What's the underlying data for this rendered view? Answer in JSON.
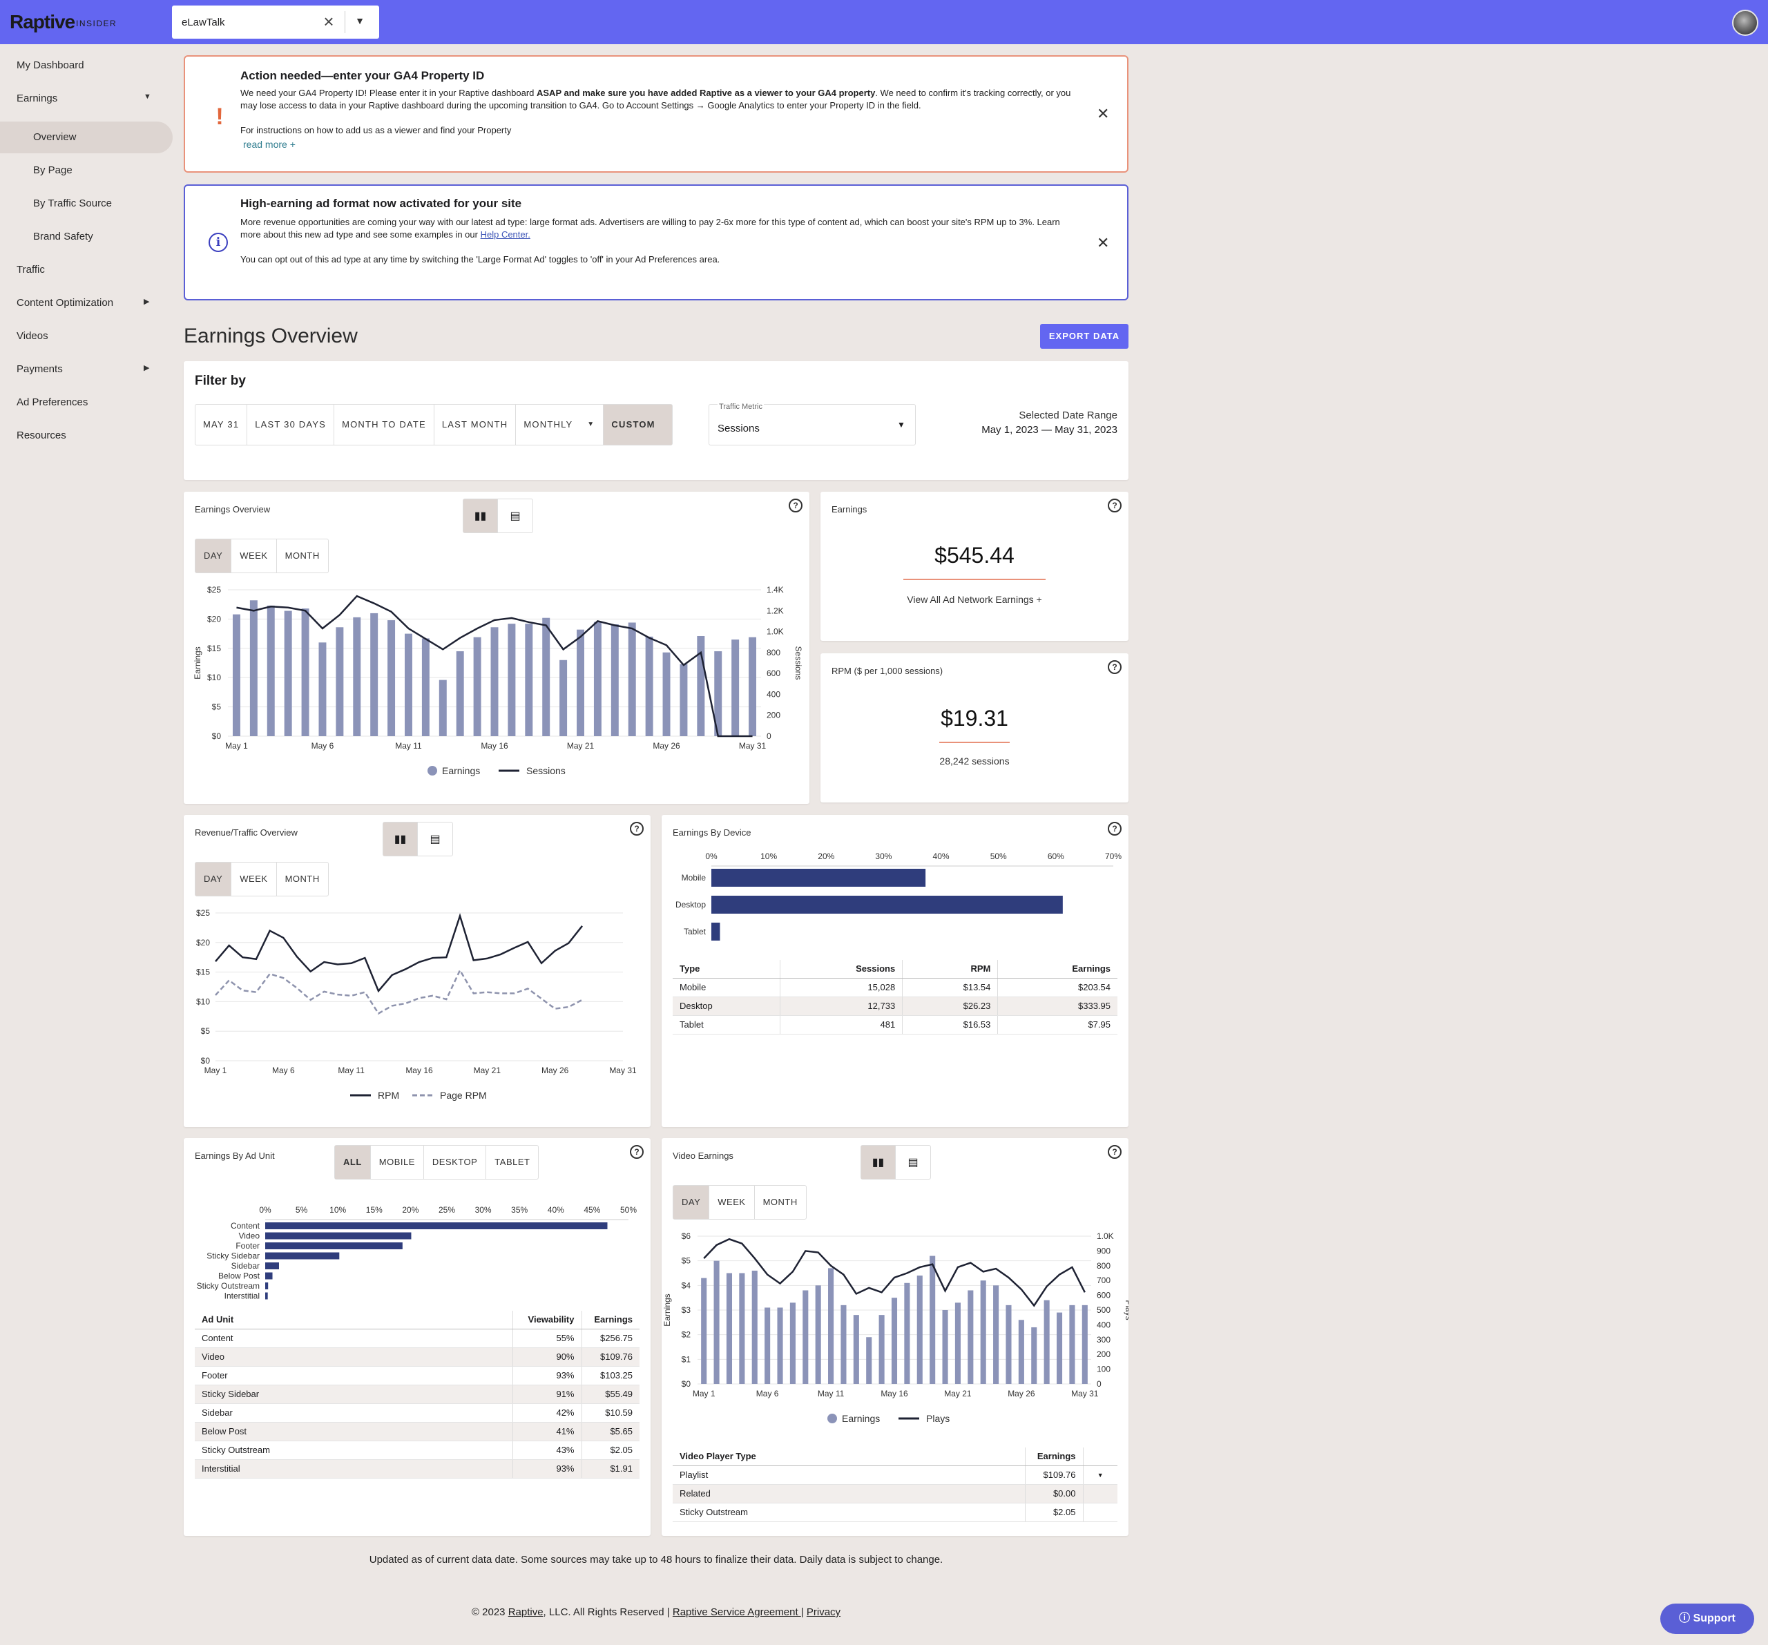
{
  "header": {
    "logo": "Raptive",
    "logo_sub": "INSIDER",
    "site": "eLawTalk"
  },
  "sidebar": {
    "items": [
      {
        "label": "My Dashboard"
      },
      {
        "label": "Earnings"
      },
      {
        "label": "Overview"
      },
      {
        "label": "By Page"
      },
      {
        "label": "By Traffic Source"
      },
      {
        "label": "Brand Safety"
      },
      {
        "label": "Traffic"
      },
      {
        "label": "Content Optimization"
      },
      {
        "label": "Videos"
      },
      {
        "label": "Payments"
      },
      {
        "label": "Ad Preferences"
      },
      {
        "label": "Resources"
      }
    ]
  },
  "alert1": {
    "title": "Action needed—enter your GA4 Property ID",
    "text_pre": "We need your GA4 Property ID! Please enter it in your Raptive dashboard ",
    "text_bold": "ASAP and make sure you have added Raptive as a viewer to your GA4 property",
    "text_post": ". We need to confirm it's tracking correctly, or you may lose access to data in your Raptive dashboard during the upcoming transition to GA4. Go to Account Settings → Google Analytics to enter your Property ID in the field.",
    "text2": "For instructions on how to add us as a viewer and find your Property",
    "read_more": "read more +"
  },
  "alert2": {
    "title": "High-earning ad format now activated for your site",
    "text_pre": "More revenue opportunities are coming your way with our latest ad type: large format ads. Advertisers are willing to pay 2-6x more for this type of content ad, which can boost your site's RPM up to 3%. Learn more about this new ad type and see some examples in our ",
    "link": "Help Center.",
    "text2": "You can opt out of this ad type at any time by switching the 'Large Format Ad' toggles to 'off' in your Ad Preferences area."
  },
  "page": {
    "title": "Earnings Overview",
    "export": "EXPORT DATA"
  },
  "filter": {
    "title": "Filter by",
    "buttons": [
      "MAY 31",
      "LAST 30 DAYS",
      "MONTH TO DATE",
      "LAST MONTH",
      "MONTHLY",
      "CUSTOM"
    ],
    "metric_label": "Traffic Metric",
    "metric_value": "Sessions",
    "range_label": "Selected Date Range",
    "range_value": "May 1, 2023 — May 31, 2023"
  },
  "segments": {
    "day": "DAY",
    "week": "WEEK",
    "month": "MONTH"
  },
  "earnings_chart": {
    "title": "Earnings Overview",
    "legend1": "Earnings",
    "legend2": "Sessions",
    "ylabel": "Earnings",
    "y2label": "Sessions"
  },
  "stat_earnings": {
    "title": "Earnings",
    "value": "$545.44",
    "link": "View All Ad Network Earnings +"
  },
  "stat_rpm": {
    "title": "RPM ($ per 1,000 sessions)",
    "value": "$19.31",
    "sub": "28,242 sessions"
  },
  "rev_chart": {
    "title": "Revenue/Traffic Overview",
    "legend1": "RPM",
    "legend2": "Page RPM"
  },
  "device": {
    "title": "Earnings By Device",
    "headers": [
      "Type",
      "Sessions",
      "RPM",
      "Earnings"
    ],
    "rows": [
      [
        "Mobile",
        "15,028",
        "$13.54",
        "$203.54"
      ],
      [
        "Desktop",
        "12,733",
        "$26.23",
        "$333.95"
      ],
      [
        "Tablet",
        "481",
        "$16.53",
        "$7.95"
      ]
    ]
  },
  "adunit": {
    "title": "Earnings By Ad Unit",
    "tabs": [
      "ALL",
      "MOBILE",
      "DESKTOP",
      "TABLET"
    ],
    "headers": [
      "Ad Unit",
      "Viewability",
      "Earnings"
    ],
    "rows": [
      [
        "Content",
        "55%",
        "$256.75"
      ],
      [
        "Video",
        "90%",
        "$109.76"
      ],
      [
        "Footer",
        "93%",
        "$103.25"
      ],
      [
        "Sticky Sidebar",
        "91%",
        "$55.49"
      ],
      [
        "Sidebar",
        "42%",
        "$10.59"
      ],
      [
        "Below Post",
        "41%",
        "$5.65"
      ],
      [
        "Sticky Outstream",
        "43%",
        "$2.05"
      ],
      [
        "Interstitial",
        "93%",
        "$1.91"
      ]
    ]
  },
  "video": {
    "title": "Video Earnings",
    "legend1": "Earnings",
    "legend2": "Plays",
    "ylabel": "Earnings",
    "y2label": "Plays",
    "headers": [
      "Video Player Type",
      "Earnings"
    ],
    "rows": [
      [
        "Playlist",
        "$109.76"
      ],
      [
        "Related",
        "$0.00"
      ],
      [
        "Sticky Outstream",
        "$2.05"
      ]
    ]
  },
  "footer": {
    "note": "Updated as of current data date. Some sources may take up to 48 hours to finalize their data. Daily data is subject to change.",
    "copy_pre": "© 2023 ",
    "raptive": "Raptive",
    "copy_mid": ", LLC. All Rights Reserved | ",
    "agreement": "Raptive Service Agreement ",
    "sep": "| ",
    "privacy": "Privacy",
    "support": "Support"
  },
  "colors": {
    "accent": "#6366f1",
    "bar": "#8b93b8",
    "line": "#1e2233",
    "device_bar": "#2f3d7c"
  },
  "chart_data": [
    {
      "type": "bar",
      "x": [
        "May 1",
        "May 2",
        "May 3",
        "May 4",
        "May 5",
        "May 6",
        "May 7",
        "May 8",
        "May 9",
        "May 10",
        "May 11",
        "May 12",
        "May 13",
        "May 14",
        "May 15",
        "May 16",
        "May 17",
        "May 18",
        "May 19",
        "May 20",
        "May 21",
        "May 22",
        "May 23",
        "May 24",
        "May 25",
        "May 26",
        "May 27",
        "May 28",
        "May 29",
        "May 30",
        "May 31"
      ],
      "xticks": [
        "May 1",
        "May 6",
        "May 11",
        "May 16",
        "May 21",
        "May 26",
        "May 31"
      ],
      "series": [
        {
          "name": "Earnings",
          "axis": "left",
          "type": "bar",
          "values": [
            20.8,
            23.2,
            22.3,
            21.4,
            21.8,
            16.0,
            18.6,
            20.3,
            21.0,
            19.8,
            17.5,
            16.7,
            9.6,
            14.5,
            16.9,
            18.6,
            19.2,
            19.2,
            20.2,
            13.0,
            18.2,
            19.5,
            19.1,
            19.4,
            17.0,
            14.3,
            12.3,
            17.1,
            14.5,
            16.5,
            16.9
          ]
        },
        {
          "name": "Sessions",
          "axis": "right",
          "type": "line",
          "values": [
            1230,
            1200,
            1240,
            1230,
            1200,
            1030,
            1160,
            1340,
            1270,
            1190,
            1030,
            930,
            830,
            940,
            1030,
            1110,
            1130,
            1090,
            1060,
            830,
            950,
            1100,
            1060,
            1030,
            940,
            870,
            680,
            800,
            0,
            0,
            0
          ]
        }
      ],
      "ylabel": "Earnings",
      "y2label": "Sessions",
      "ylim": [
        0,
        25
      ],
      "y2lim": [
        0,
        1400
      ],
      "yticks": [
        "$0",
        "$5",
        "$10",
        "$15",
        "$20",
        "$25"
      ],
      "y2ticks": [
        "0",
        "200",
        "400",
        "600",
        "800",
        "1.0K",
        "1.2K",
        "1.4K"
      ]
    },
    {
      "type": "line",
      "x": [
        "May 1",
        "May 2",
        "May 3",
        "May 4",
        "May 5",
        "May 6",
        "May 7",
        "May 8",
        "May 9",
        "May 10",
        "May 11",
        "May 12",
        "May 13",
        "May 14",
        "May 15",
        "May 16",
        "May 17",
        "May 18",
        "May 19",
        "May 20",
        "May 21",
        "May 22",
        "May 23",
        "May 24",
        "May 25",
        "May 26",
        "May 27",
        "May 28"
      ],
      "xticks": [
        "May 1",
        "May 6",
        "May 11",
        "May 16",
        "May 21",
        "May 26",
        "May 31"
      ],
      "series": [
        {
          "name": "RPM",
          "values": [
            16.8,
            19.5,
            17.5,
            17.2,
            22.0,
            20.8,
            17.6,
            15.1,
            16.7,
            16.3,
            16.5,
            17.4,
            11.8,
            14.5,
            15.5,
            16.7,
            17.4,
            17.5,
            24.5,
            17.0,
            17.3,
            18.0,
            19.1,
            20.1,
            16.5,
            18.6,
            19.9,
            22.8
          ]
        },
        {
          "name": "Page RPM",
          "values": [
            11.1,
            13.6,
            11.9,
            11.6,
            14.7,
            14.0,
            12.3,
            10.3,
            11.7,
            11.2,
            11.0,
            11.6,
            8.0,
            9.3,
            9.7,
            10.6,
            11.0,
            10.4,
            15.3,
            11.4,
            11.6,
            11.4,
            11.4,
            12.2,
            10.5,
            8.8,
            9.1,
            10.3
          ]
        }
      ],
      "ylim": [
        0,
        25
      ],
      "yticks": [
        "$0",
        "$5",
        "$10",
        "$15",
        "$20",
        "$25"
      ]
    },
    {
      "type": "bar",
      "orientation": "horizontal",
      "categories": [
        "Mobile",
        "Desktop",
        "Tablet"
      ],
      "values": [
        37.3,
        61.2,
        1.5
      ],
      "xlim": [
        0,
        70
      ],
      "xticks": [
        "0%",
        "10%",
        "20%",
        "30%",
        "40%",
        "50%",
        "60%",
        "70%"
      ]
    },
    {
      "type": "bar",
      "orientation": "horizontal",
      "categories": [
        "Content",
        "Video",
        "Footer",
        "Sticky Sidebar",
        "Sidebar",
        "Below Post",
        "Sticky Outstream",
        "Interstitial"
      ],
      "values": [
        47.1,
        20.1,
        18.9,
        10.2,
        1.9,
        1.0,
        0.4,
        0.35
      ],
      "xlim": [
        0,
        50
      ],
      "xticks": [
        "0%",
        "5%",
        "10%",
        "15%",
        "20%",
        "25%",
        "30%",
        "35%",
        "40%",
        "45%",
        "50%"
      ]
    },
    {
      "type": "bar",
      "x": [
        "May 1",
        "May 2",
        "May 3",
        "May 4",
        "May 5",
        "May 6",
        "May 7",
        "May 8",
        "May 9",
        "May 10",
        "May 11",
        "May 12",
        "May 13",
        "May 14",
        "May 15",
        "May 16",
        "May 17",
        "May 18",
        "May 19",
        "May 20",
        "May 21",
        "May 22",
        "May 23",
        "May 24",
        "May 25",
        "May 26",
        "May 27",
        "May 28",
        "May 29",
        "May 30",
        "May 31"
      ],
      "xticks": [
        "May 1",
        "May 6",
        "May 11",
        "May 16",
        "May 21",
        "May 26",
        "May 31"
      ],
      "series": [
        {
          "name": "Earnings",
          "axis": "left",
          "type": "bar",
          "values": [
            4.3,
            5.0,
            4.5,
            4.5,
            4.6,
            3.1,
            3.1,
            3.3,
            3.8,
            4.0,
            4.7,
            3.2,
            2.8,
            1.9,
            2.8,
            3.5,
            4.1,
            4.4,
            5.2,
            3.0,
            3.3,
            3.8,
            4.2,
            4.0,
            3.2,
            2.6,
            2.3,
            3.4,
            2.9,
            3.2,
            3.2
          ]
        },
        {
          "name": "Plays",
          "axis": "right",
          "type": "line",
          "values": [
            850,
            940,
            980,
            950,
            850,
            740,
            680,
            760,
            900,
            890,
            800,
            740,
            610,
            650,
            620,
            720,
            750,
            790,
            810,
            630,
            790,
            820,
            760,
            780,
            720,
            640,
            530,
            660,
            740,
            790,
            620
          ]
        }
      ],
      "ylabel": "Earnings",
      "y2label": "Plays",
      "ylim": [
        0,
        6
      ],
      "y2lim": [
        0,
        1000
      ],
      "yticks": [
        "$0",
        "$1",
        "$2",
        "$3",
        "$4",
        "$5",
        "$6"
      ],
      "y2ticks": [
        "0",
        "100",
        "200",
        "300",
        "400",
        "500",
        "600",
        "700",
        "800",
        "900",
        "1.0K"
      ]
    }
  ]
}
